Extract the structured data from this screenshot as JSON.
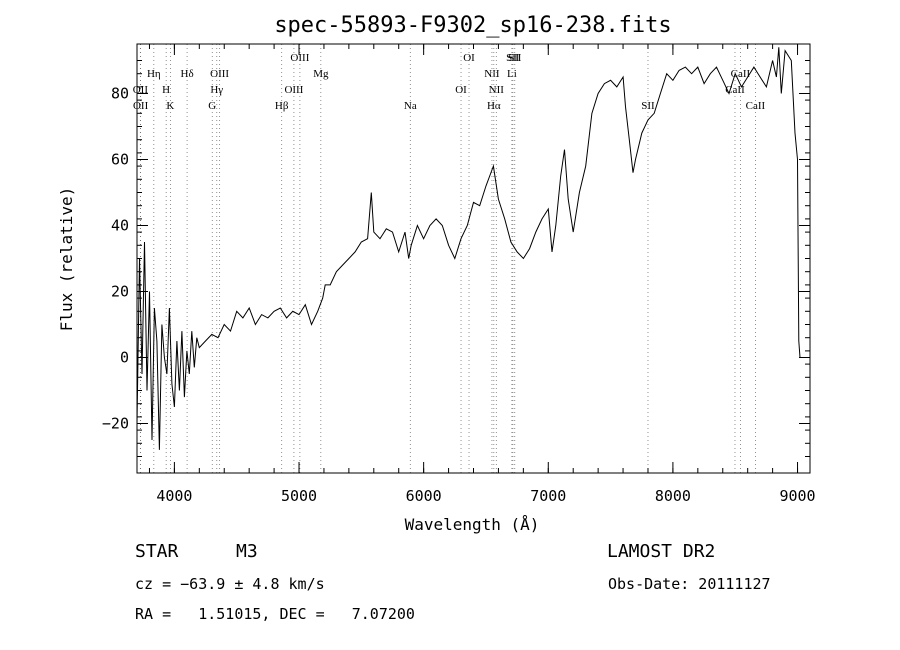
{
  "chart_data": {
    "type": "line",
    "title": "spec-55893-F9302_sp16-238.fits",
    "xlabel": "Wavelength (Å)",
    "ylabel": "Flux (relative)",
    "xlim": [
      3700,
      9100
    ],
    "ylim": [
      -35,
      95
    ],
    "xticks": [
      4000,
      5000,
      6000,
      7000,
      8000,
      9000
    ],
    "yticks": [
      -20,
      0,
      20,
      40,
      60,
      80
    ],
    "grid": false,
    "series": [
      {
        "x": [
          3700,
          3720,
          3740,
          3760,
          3780,
          3800,
          3820,
          3840,
          3860,
          3880,
          3900,
          3920,
          3940,
          3960,
          3980,
          4000,
          4020,
          4040,
          4060,
          4080,
          4100,
          4120,
          4140,
          4160,
          4180,
          4200,
          4250,
          4300,
          4350,
          4400,
          4450,
          4500,
          4550,
          4600,
          4650,
          4700,
          4750,
          4800,
          4850,
          4900,
          4950,
          5000,
          5050,
          5100,
          5150,
          5190,
          5210,
          5250,
          5300,
          5350,
          5400,
          5450,
          5500,
          5550,
          5580,
          5600,
          5650,
          5700,
          5750,
          5800,
          5850,
          5880,
          5900,
          5950,
          6000,
          6050,
          6100,
          6150,
          6200,
          6250,
          6300,
          6350,
          6400,
          6450,
          6500,
          6530,
          6560,
          6600,
          6650,
          6700,
          6750,
          6800,
          6850,
          6900,
          6950,
          7000,
          7030,
          7060,
          7100,
          7130,
          7160,
          7200,
          7250,
          7300,
          7350,
          7400,
          7450,
          7500,
          7550,
          7600,
          7620,
          7650,
          7680,
          7700,
          7750,
          7800,
          7850,
          7900,
          7950,
          8000,
          8050,
          8100,
          8150,
          8200,
          8250,
          8300,
          8350,
          8400,
          8450,
          8500,
          8550,
          8600,
          8650,
          8700,
          8750,
          8800,
          8830,
          8850,
          8870,
          8900,
          8950,
          8980,
          9000,
          9010,
          9020
        ],
        "y": [
          -20,
          30,
          -5,
          35,
          -10,
          20,
          -25,
          15,
          5,
          -28,
          10,
          0,
          -5,
          15,
          -8,
          -15,
          5,
          -10,
          8,
          -12,
          2,
          -5,
          8,
          -3,
          6,
          3,
          5,
          7,
          6,
          10,
          8,
          14,
          12,
          15,
          10,
          13,
          12,
          14,
          15,
          12,
          14,
          13,
          16,
          10,
          14,
          18,
          22,
          22,
          26,
          28,
          30,
          32,
          35,
          36,
          50,
          38,
          36,
          39,
          38,
          32,
          38,
          30,
          34,
          40,
          36,
          40,
          42,
          40,
          34,
          30,
          36,
          40,
          47,
          46,
          52,
          55,
          58,
          48,
          42,
          35,
          32,
          30,
          33,
          38,
          42,
          45,
          32,
          40,
          55,
          63,
          48,
          38,
          50,
          58,
          74,
          80,
          83,
          84,
          82,
          85,
          76,
          66,
          56,
          60,
          68,
          72,
          74,
          80,
          86,
          84,
          87,
          88,
          86,
          88,
          83,
          86,
          88,
          84,
          80,
          86,
          82,
          85,
          88,
          85,
          82,
          90,
          85,
          94,
          80,
          93,
          90,
          68,
          60,
          5,
          0
        ]
      }
    ],
    "lines": [
      {
        "label": "OII",
        "x": 3727,
        "row": 2
      },
      {
        "label": "OII",
        "x": 3729,
        "row": 3
      },
      {
        "label": "Hη",
        "x": 3835,
        "row": 1
      },
      {
        "label": "H",
        "x": 3934,
        "row": 2
      },
      {
        "label": "K",
        "x": 3968,
        "row": 3
      },
      {
        "label": "Hδ",
        "x": 4102,
        "row": 1
      },
      {
        "label": "OIII",
        "x": 4363,
        "row": 1
      },
      {
        "label": "Hγ",
        "x": 4340,
        "row": 2
      },
      {
        "label": "G",
        "x": 4304,
        "row": 3
      },
      {
        "label": "Hβ",
        "x": 4861,
        "row": 3
      },
      {
        "label": "OIII",
        "x": 4959,
        "row": 2
      },
      {
        "label": "OIII",
        "x": 5007,
        "row": 0
      },
      {
        "label": "Mg",
        "x": 5175,
        "row": 1
      },
      {
        "label": "Na",
        "x": 5893,
        "row": 3
      },
      {
        "label": "OI",
        "x": 6300,
        "row": 2
      },
      {
        "label": "OI",
        "x": 6364,
        "row": 0
      },
      {
        "label": "NII",
        "x": 6548,
        "row": 1
      },
      {
        "label": "Hα",
        "x": 6563,
        "row": 3
      },
      {
        "label": "NII",
        "x": 6583,
        "row": 2
      },
      {
        "label": "Li",
        "x": 6708,
        "row": 1
      },
      {
        "label": "SII",
        "x": 6716,
        "row": 0
      },
      {
        "label": "SII",
        "x": 6731,
        "row": 0
      },
      {
        "label": "SII",
        "x": 7800,
        "row": 3
      },
      {
        "label": "CaII",
        "x": 8498,
        "row": 2
      },
      {
        "label": "CaII",
        "x": 8542,
        "row": 1
      },
      {
        "label": "CaII",
        "x": 8662,
        "row": 3
      }
    ]
  },
  "info": {
    "class": "STAR",
    "subclass": "M3",
    "survey": "LAMOST DR2",
    "cz": "cz = −63.9 ± 4.8 km/s",
    "obs_date": "Obs-Date: 20111127",
    "radec": "RA =   1.51015, DEC =   7.07200"
  }
}
